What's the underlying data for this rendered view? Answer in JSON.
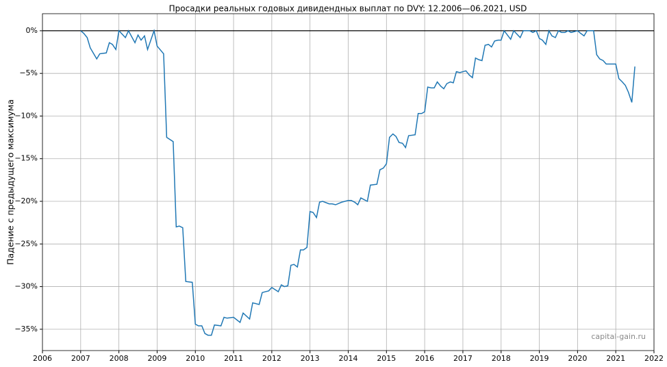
{
  "chart_data": {
    "type": "line",
    "title": "Просадки реальных годовых дивидендных выплат по DVY: 12.2006—06.2021, USD",
    "y_label": "Падение с предыдущего максимума",
    "watermark": "capital-gain.ru",
    "color": "#1f77b4",
    "grid": true,
    "reference_line": 0,
    "xlim": [
      2006,
      2022
    ],
    "xticks": [
      2006,
      2007,
      2008,
      2009,
      2010,
      2011,
      2012,
      2013,
      2014,
      2015,
      2016,
      2017,
      2018,
      2019,
      2020,
      2021,
      2022
    ],
    "ylim": [
      -37.5,
      2
    ],
    "yticks": [
      {
        "value": 0,
        "label": "0%"
      },
      {
        "value": -5,
        "label": "−5%"
      },
      {
        "value": -10,
        "label": "−10%"
      },
      {
        "value": -15,
        "label": "−15%"
      },
      {
        "value": -20,
        "label": "−20%"
      },
      {
        "value": -25,
        "label": "−25%"
      },
      {
        "value": -30,
        "label": "−30%"
      },
      {
        "value": -35,
        "label": "−35%"
      }
    ],
    "x": [
      2007.0,
      2007.08,
      2007.17,
      2007.25,
      2007.42,
      2007.5,
      2007.67,
      2007.75,
      2007.83,
      2007.92,
      2008.0,
      2008.17,
      2008.25,
      2008.42,
      2008.5,
      2008.58,
      2008.67,
      2008.75,
      2008.92,
      2009.0,
      2009.17,
      2009.25,
      2009.42,
      2009.5,
      2009.58,
      2009.67,
      2009.75,
      2009.92,
      2010.0,
      2010.08,
      2010.17,
      2010.25,
      2010.33,
      2010.42,
      2010.5,
      2010.67,
      2010.75,
      2010.83,
      2011.0,
      2011.17,
      2011.25,
      2011.42,
      2011.5,
      2011.67,
      2011.75,
      2011.83,
      2011.92,
      2012.0,
      2012.17,
      2012.25,
      2012.33,
      2012.42,
      2012.5,
      2012.58,
      2012.67,
      2012.75,
      2012.83,
      2012.92,
      2013.0,
      2013.08,
      2013.17,
      2013.25,
      2013.33,
      2013.5,
      2013.58,
      2013.67,
      2013.83,
      2014.0,
      2014.08,
      2014.17,
      2014.25,
      2014.33,
      2014.5,
      2014.58,
      2014.75,
      2014.83,
      2014.92,
      2015.0,
      2015.08,
      2015.17,
      2015.25,
      2015.33,
      2015.42,
      2015.5,
      2015.58,
      2015.75,
      2015.83,
      2015.92,
      2016.0,
      2016.08,
      2016.17,
      2016.25,
      2016.33,
      2016.42,
      2016.5,
      2016.58,
      2016.67,
      2016.75,
      2016.83,
      2016.92,
      2017.0,
      2017.08,
      2017.17,
      2017.25,
      2017.33,
      2017.42,
      2017.5,
      2017.58,
      2017.67,
      2017.75,
      2017.83,
      2017.92,
      2018.0,
      2018.08,
      2018.25,
      2018.33,
      2018.5,
      2018.58,
      2018.75,
      2018.83,
      2018.92,
      2019.0,
      2019.08,
      2019.17,
      2019.25,
      2019.33,
      2019.42,
      2019.5,
      2019.58,
      2019.67,
      2019.75,
      2019.83,
      2019.92,
      2020.0,
      2020.08,
      2020.17,
      2020.25,
      2020.42,
      2020.5,
      2020.58,
      2020.67,
      2020.75,
      2020.92,
      2021.0,
      2021.08,
      2021.17,
      2021.25,
      2021.33,
      2021.42,
      2021.5
    ],
    "values": [
      0,
      -0.3,
      -0.8,
      -2,
      -3.3,
      -2.7,
      -2.6,
      -1.4,
      -1.6,
      -2.2,
      0,
      -0.8,
      0,
      -1.4,
      -0.5,
      -1.1,
      -0.6,
      -2.2,
      0,
      -1.8,
      -2.7,
      -12.5,
      -13,
      -23,
      -22.9,
      -23.1,
      -29.4,
      -29.5,
      -34.4,
      -34.6,
      -34.6,
      -35.5,
      -35.7,
      -35.7,
      -34.5,
      -34.6,
      -33.6,
      -33.7,
      -33.6,
      -34.2,
      -33.1,
      -33.8,
      -31.9,
      -32.1,
      -30.7,
      -30.6,
      -30.5,
      -30.1,
      -30.6,
      -29.8,
      -30,
      -29.9,
      -27.5,
      -27.4,
      -27.7,
      -25.7,
      -25.7,
      -25.4,
      -21.2,
      -21.3,
      -21.9,
      -20.1,
      -20,
      -20.3,
      -20.3,
      -20.4,
      -20.1,
      -19.9,
      -19.9,
      -20.1,
      -20.4,
      -19.6,
      -20,
      -18.1,
      -18,
      -16.3,
      -16.1,
      -15.6,
      -12.5,
      -12.1,
      -12.4,
      -13.1,
      -13.2,
      -13.7,
      -12.3,
      -12.2,
      -9.7,
      -9.7,
      -9.5,
      -6.6,
      -6.7,
      -6.7,
      -6,
      -6.5,
      -6.8,
      -6.2,
      -6,
      -6.1,
      -4.8,
      -4.9,
      -4.8,
      -4.7,
      -5.2,
      -5.5,
      -3.2,
      -3.4,
      -3.5,
      -1.7,
      -1.6,
      -1.9,
      -1.2,
      -1.1,
      -1.1,
      0,
      -1,
      0,
      -0.8,
      0,
      0,
      -0.2,
      0,
      -0.9,
      -1.1,
      -1.6,
      0,
      -0.6,
      -0.8,
      0,
      -0.2,
      -0.2,
      0,
      -0.2,
      -0.1,
      0,
      -0.3,
      -0.6,
      0,
      0,
      -2.8,
      -3.3,
      -3.5,
      -3.9,
      -3.9,
      -3.9,
      -5.6,
      -6,
      -6.4,
      -7.2,
      -8.4,
      -4.2
    ]
  }
}
